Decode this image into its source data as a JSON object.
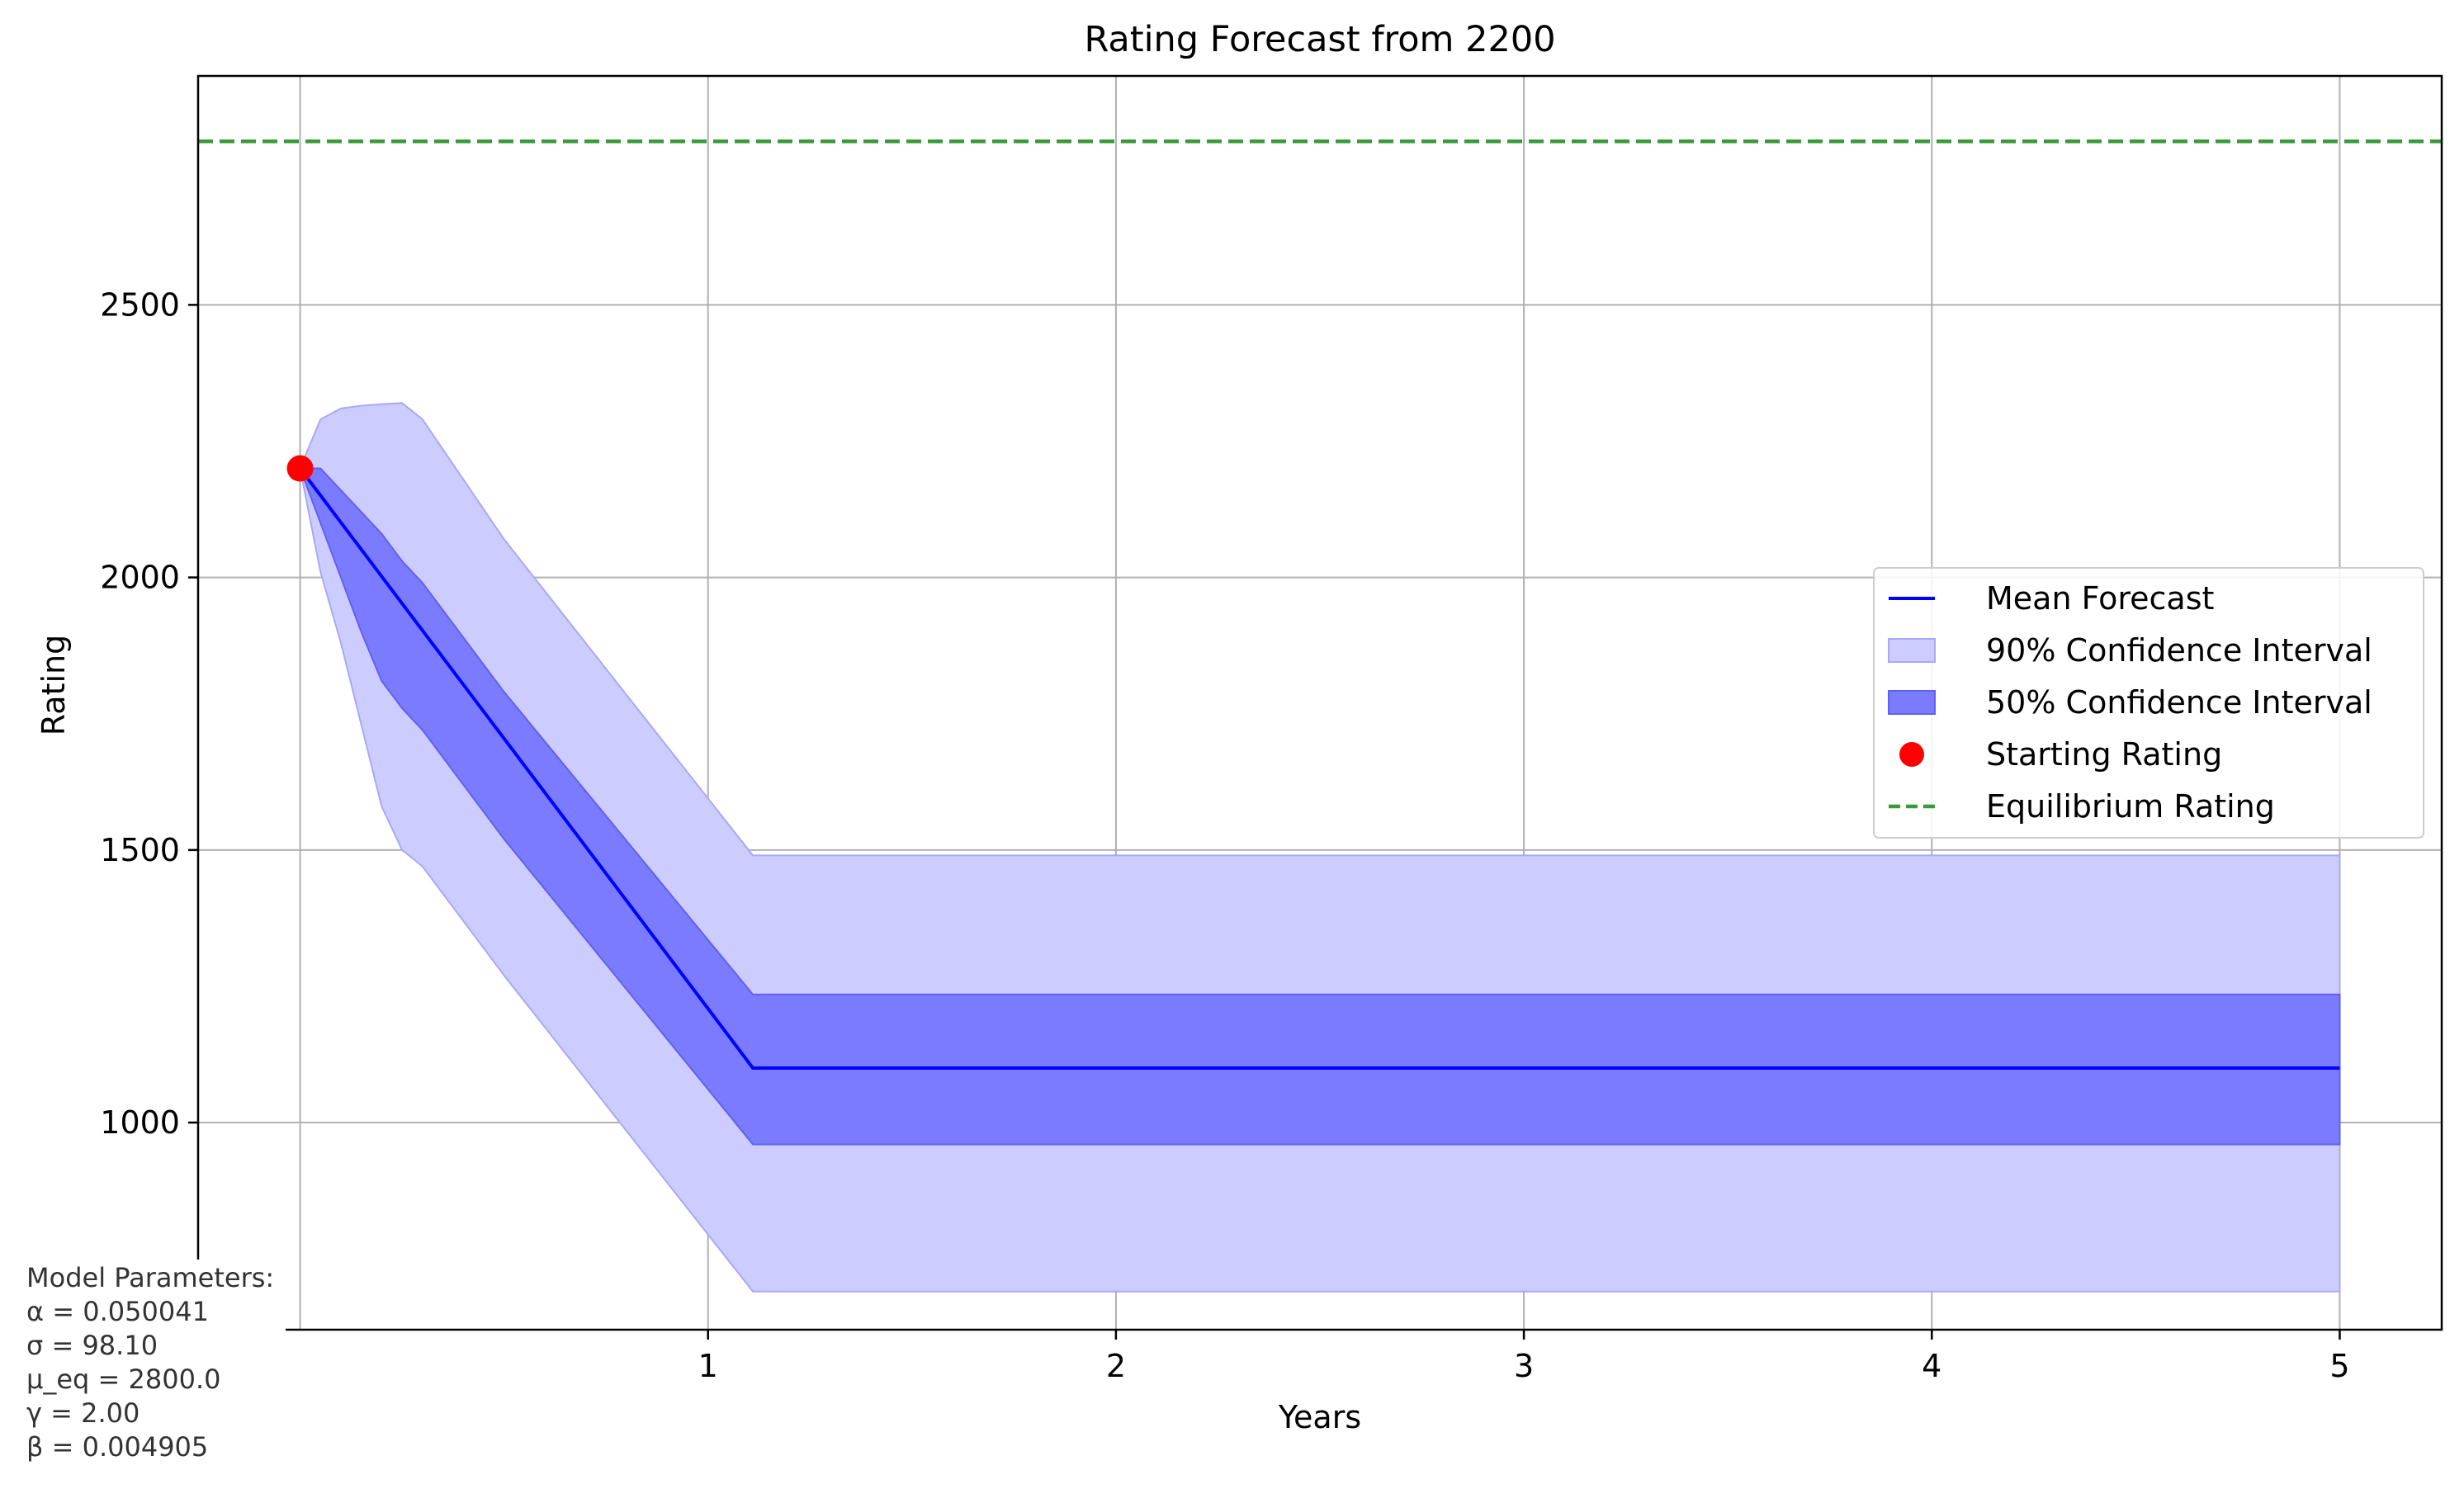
{
  "chart_data": {
    "type": "line",
    "title": "Rating Forecast from 2200",
    "xlabel": "Years",
    "ylabel": "Rating",
    "xlim": [
      -0.25,
      5.25
    ],
    "ylim": [
      620,
      2920
    ],
    "xticks": [
      1,
      2,
      3,
      4,
      5
    ],
    "yticks": [
      1000,
      1500,
      2000,
      2500
    ],
    "grid": true,
    "legend_position": "center-right",
    "series": [
      {
        "name": "Mean Forecast",
        "kind": "line",
        "color": "#0000ff",
        "x": [
          0,
          1.11,
          5
        ],
        "y": [
          2200,
          1100,
          1100
        ]
      },
      {
        "name": "90% Confidence Interval",
        "kind": "band",
        "color": "#ccccff",
        "x": [
          0,
          0.05,
          0.1,
          0.15,
          0.2,
          0.25,
          0.3,
          0.5,
          1.11,
          5
        ],
        "lower": [
          2200,
          2010,
          1880,
          1730,
          1580,
          1500,
          1470,
          1270,
          690,
          690
        ],
        "upper": [
          2200,
          2290,
          2310,
          2315,
          2318,
          2320,
          2290,
          2070,
          1490,
          1490
        ]
      },
      {
        "name": "50% Confidence Interval",
        "kind": "band",
        "color": "#7b7bff",
        "x": [
          0,
          0.05,
          0.1,
          0.15,
          0.2,
          0.25,
          0.3,
          0.5,
          1.11,
          5
        ],
        "lower": [
          2200,
          2100,
          2000,
          1900,
          1810,
          1760,
          1720,
          1520,
          960,
          960
        ],
        "upper": [
          2200,
          2200,
          2160,
          2120,
          2080,
          2030,
          1990,
          1790,
          1235,
          1235
        ]
      },
      {
        "name": "Starting Rating",
        "kind": "point",
        "color": "#ff0000",
        "x": [
          0
        ],
        "y": [
          2200
        ]
      },
      {
        "name": "Equilibrium Rating",
        "kind": "hline",
        "color": "#3a9a3a",
        "y": 2800
      }
    ]
  },
  "annotation": {
    "lines": [
      "Model Parameters:",
      "α = 0.050041",
      "σ = 98.10",
      "μ_eq = 2800.0",
      "γ = 2.00",
      "β = 0.004905"
    ]
  }
}
